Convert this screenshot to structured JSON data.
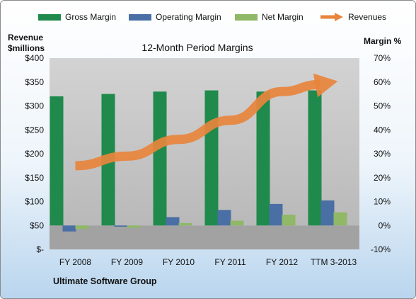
{
  "chart_data": {
    "type": "bar",
    "title": "12-Month Period Margins",
    "company": "Ultimate Software Group",
    "left_axis_label": [
      "Revenue",
      "$millions"
    ],
    "right_axis_label": "Margin %",
    "categories": [
      "FY 2008",
      "FY 2009",
      "FY 2010",
      "FY 2011",
      "FY 2012",
      "TTM 3-2013"
    ],
    "y_left": {
      "min": 0,
      "max": 400,
      "step": 50,
      "ticks": [
        "$-",
        "$50",
        "$100",
        "$150",
        "$200",
        "$250",
        "$300",
        "$350",
        "$400"
      ]
    },
    "y_right": {
      "min": -10,
      "max": 70,
      "step": 10,
      "ticks": [
        "-10%",
        "0%",
        "10%",
        "20%",
        "30%",
        "40%",
        "50%",
        "60%",
        "70%"
      ]
    },
    "series": [
      {
        "name": "Gross Margin",
        "type": "bar",
        "axis": "right",
        "color": "#1f8a4c",
        "values": [
          54,
          55,
          56,
          56.5,
          56,
          56.5
        ]
      },
      {
        "name": "Operating Margin",
        "type": "bar",
        "axis": "right",
        "color": "#4a6fa5",
        "values": [
          -2.5,
          -0.5,
          3.5,
          6.5,
          9,
          10.5
        ]
      },
      {
        "name": "Net Margin",
        "type": "bar",
        "axis": "right",
        "color": "#90b866",
        "values": [
          -1.5,
          -1,
          1,
          2,
          4.5,
          5.5
        ]
      },
      {
        "name": "Revenues",
        "type": "arrow",
        "axis": "left",
        "color": "#e8843c",
        "values": [
          175,
          195,
          230,
          270,
          330,
          350
        ]
      }
    ],
    "grid": false,
    "legend_position": "top"
  }
}
